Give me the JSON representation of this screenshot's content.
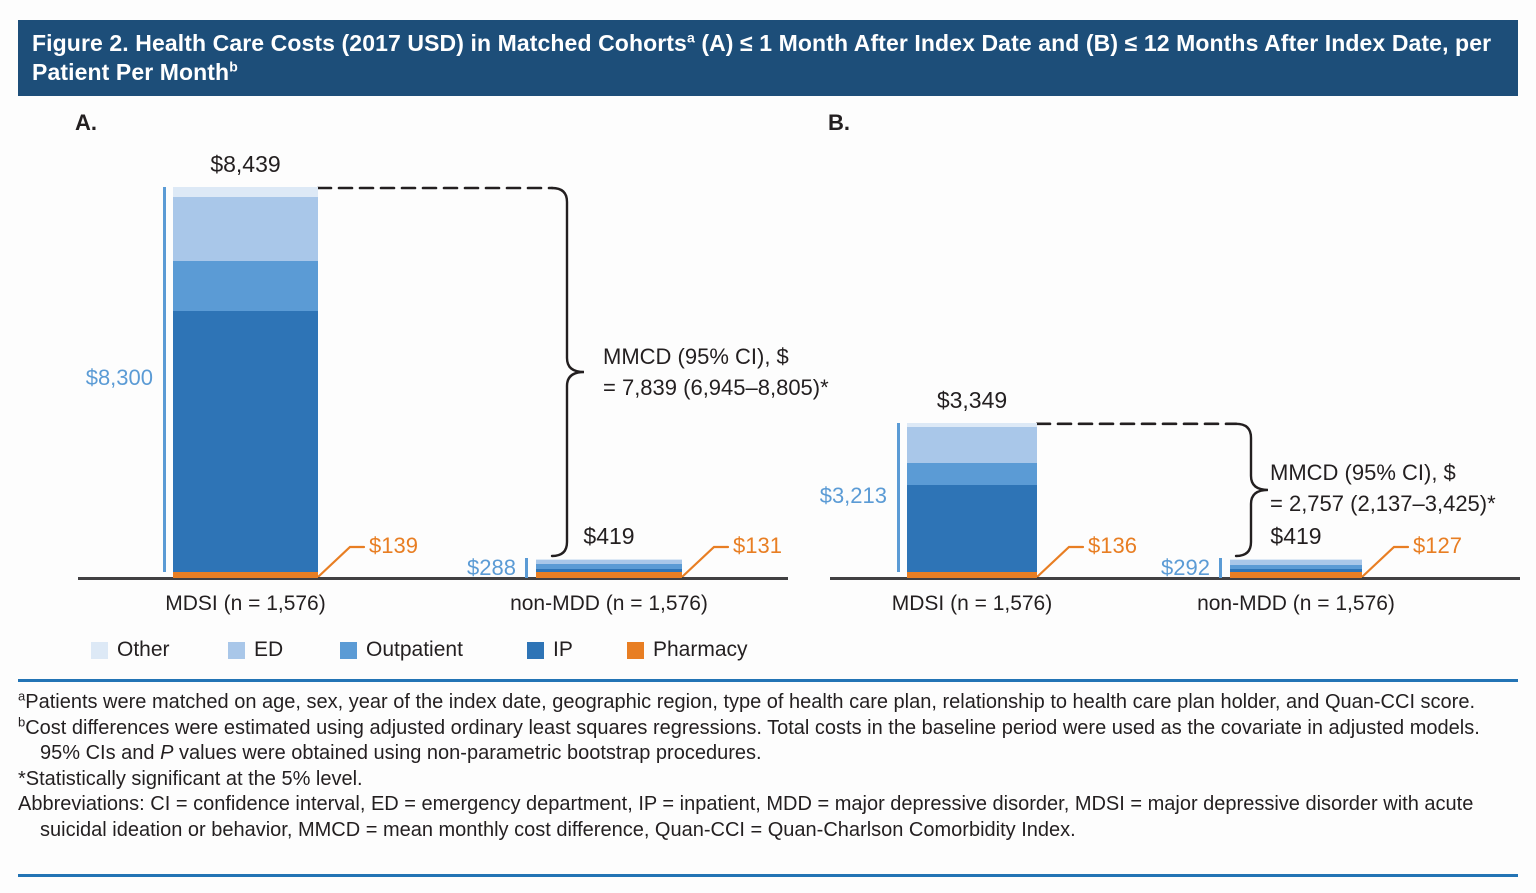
{
  "figure_title": {
    "part1": "Figure 2. Health Care Costs (2017 USD) in Matched Cohorts",
    "sup1": "a",
    "part2": " (A) ≤ 1 Month After Index Date and (B) ≤ 12 Months After Index Date, per Patient Per Month",
    "sup2": "b"
  },
  "colors": {
    "title_bar_bg": "#1d4e79",
    "title_text": "#ffffff",
    "other": "#dde9f6",
    "ed": "#a9c7e9",
    "outpatient": "#5b9bd5",
    "ip": "#2e74b6",
    "pharmacy": "#e87e23",
    "blue_label": "#5b9bd5",
    "orange_label": "#e87e23",
    "axis": "#414042",
    "rule_blue": "#2374b5",
    "annotation": "#231f20"
  },
  "legend": {
    "items": [
      {
        "label": "Other",
        "key": "other"
      },
      {
        "label": "ED",
        "key": "ed"
      },
      {
        "label": "Outpatient",
        "key": "outpatient"
      },
      {
        "label": "IP",
        "key": "ip"
      },
      {
        "label": "Pharmacy",
        "key": "pharmacy"
      }
    ]
  },
  "chart_data": [
    {
      "type": "bar",
      "panel_label": "A.",
      "stack_order": [
        "Pharmacy",
        "IP",
        "Outpatient",
        "ED",
        "Other"
      ],
      "categories": [
        "MDSI (n = 1,576)",
        "non-MDD (n = 1,576)"
      ],
      "bars": [
        {
          "category": "MDSI (n = 1,576)",
          "total": 8439,
          "total_label": "$8,439",
          "medical_subtotal": 8300,
          "medical_subtotal_label": "$8,300",
          "pharmacy_value": 139,
          "pharmacy_label": "$139",
          "segments": {
            "Pharmacy": 139,
            "IP": 5625,
            "Outpatient": 1080,
            "ED": 1380,
            "Other": 215
          }
        },
        {
          "category": "non-MDD (n = 1,576)",
          "total": 419,
          "total_label": "$419",
          "medical_subtotal": 288,
          "medical_subtotal_label": "$288",
          "pharmacy_value": 131,
          "pharmacy_label": "$131",
          "segments": {
            "Pharmacy": 131,
            "IP": 58,
            "Outpatient": 115,
            "ED": 105,
            "Other": 10
          }
        }
      ],
      "annotation": {
        "line1": "MMCD (95% CI), $",
        "line2": "= 7,839 (6,945–8,805)*"
      }
    },
    {
      "type": "bar",
      "panel_label": "B.",
      "stack_order": [
        "Pharmacy",
        "IP",
        "Outpatient",
        "ED",
        "Other"
      ],
      "categories": [
        "MDSI (n = 1,576)",
        "non-MDD (n = 1,576)"
      ],
      "bars": [
        {
          "category": "MDSI (n = 1,576)",
          "total": 3349,
          "total_label": "$3,349",
          "medical_subtotal": 3213,
          "medical_subtotal_label": "$3,213",
          "pharmacy_value": 136,
          "pharmacy_label": "$136",
          "segments": {
            "Pharmacy": 136,
            "IP": 1878,
            "Outpatient": 475,
            "ED": 775,
            "Other": 85
          }
        },
        {
          "category": "non-MDD (n = 1,576)",
          "total": 419,
          "total_label": "$419",
          "medical_subtotal": 292,
          "medical_subtotal_label": "$292",
          "pharmacy_value": 127,
          "pharmacy_label": "$127",
          "segments": {
            "Pharmacy": 127,
            "IP": 72,
            "Outpatient": 90,
            "ED": 120,
            "Other": 10
          }
        }
      ],
      "annotation": {
        "line1": "MMCD (95% CI), $",
        "line2": "= 2,757 (2,137–3,425)*"
      }
    }
  ],
  "footnotes": {
    "a_marker": "a",
    "a_text": "Patients were matched on age, sex, year of the index date, geographic region, type of health care plan, relationship to health care plan holder, and Quan-CCI score.",
    "b_marker": "b",
    "b_text_1": "Cost differences were estimated using adjusted ordinary least squares regressions. Total costs in the baseline period were used as the covariate in adjusted models. 95% CIs and ",
    "b_italic": "P",
    "b_text_2": " values were obtained using non-parametric bootstrap procedures.",
    "significance": "*Statistically significant at the 5% level.",
    "abbreviations": "Abbreviations: CI = confidence interval, ED = emergency department, IP = inpatient, MDD = major depressive disorder, MDSI = major depressive disorder with acute suicidal ideation or behavior, MMCD = mean monthly cost difference, Quan-CCI = Quan-Charlson Comorbidity Index."
  }
}
